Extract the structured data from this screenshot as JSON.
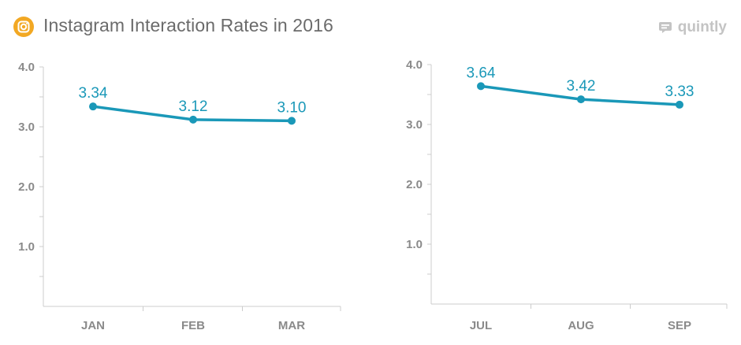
{
  "header": {
    "title": "Instagram Interaction Rates in 2016",
    "brand": "quintly",
    "icons": {
      "logo": "instagram-icon",
      "brand": "quintly-logo-icon"
    }
  },
  "colors": {
    "line": "#1a98b8",
    "label": "#1a98b8",
    "axis": "#cccccc",
    "tick_text": "#8a8a8a",
    "logo_bg": "#f2a823",
    "title": "#6b6b6b"
  },
  "chart_data": [
    {
      "type": "line",
      "categories": [
        "JAN",
        "FEB",
        "MAR"
      ],
      "values": [
        3.34,
        3.12,
        3.1
      ],
      "data_labels": [
        "3.34",
        "3.12",
        "3.10"
      ],
      "y_ticks": [
        "4.0",
        "3.0",
        "2.0",
        "1.0"
      ],
      "ylim": [
        0,
        4.0
      ],
      "grid": false,
      "legend": "none"
    },
    {
      "type": "line",
      "categories": [
        "JUL",
        "AUG",
        "SEP"
      ],
      "values": [
        3.64,
        3.42,
        3.33
      ],
      "data_labels": [
        "3.64",
        "3.42",
        "3.33"
      ],
      "y_ticks": [
        "4.0",
        "3.0",
        "2.0",
        "1.0"
      ],
      "ylim": [
        0,
        4.0
      ],
      "grid": false,
      "legend": "none"
    }
  ]
}
